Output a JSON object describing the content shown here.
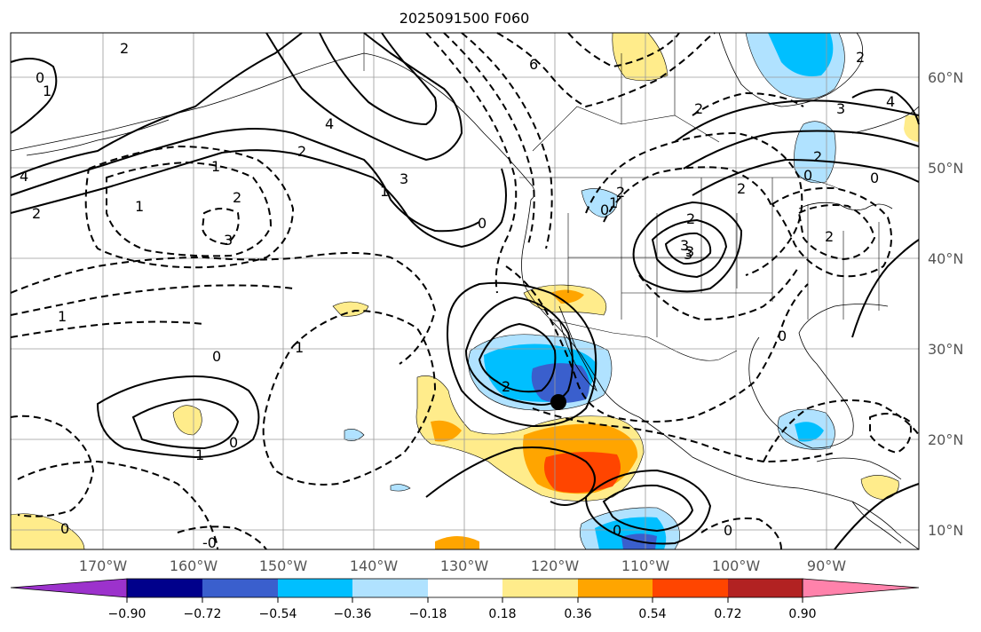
{
  "title": "2025091500 F060",
  "lat_labels": [
    "60°N",
    "50°N",
    "40°N",
    "30°N",
    "20°N",
    "10°N"
  ],
  "lon_labels": [
    "170°W",
    "160°W",
    "150°W",
    "140°W",
    "130°W",
    "120°W",
    "110°W",
    "100°W",
    "90°W"
  ],
  "colorbar": {
    "colors": [
      "#9c32cc",
      "#00008b",
      "#3a5fcd",
      "#00bfff",
      "#b0e2ff",
      "#ffffff",
      "#ffec8b",
      "#ffa500",
      "#ff4500",
      "#b22222",
      "#ff82ab"
    ],
    "tick_labels": [
      "−0.90",
      "−0.72",
      "−0.54",
      "−0.36",
      "−0.18",
      "0.18",
      "0.36",
      "0.54",
      "0.72",
      "0.90"
    ]
  },
  "contour_labels": [
    "2",
    "6",
    "1",
    "0",
    "4",
    "2",
    "1",
    "0",
    "2",
    "1",
    "3",
    "4",
    "2",
    "1",
    "3",
    "2",
    "0",
    "1",
    "2",
    "2",
    "3",
    "2",
    "3",
    "3",
    "2",
    "0",
    "4",
    "2",
    "0",
    "2",
    "1",
    "0",
    "-0",
    "0",
    "2",
    "3",
    "1",
    "0",
    "0",
    "0",
    "1",
    "0"
  ],
  "marker": {
    "label": "storm-center",
    "lat": 24,
    "lon": -121
  },
  "colors": {
    "land_line": "#000000",
    "grid": "#9a9a9a"
  }
}
